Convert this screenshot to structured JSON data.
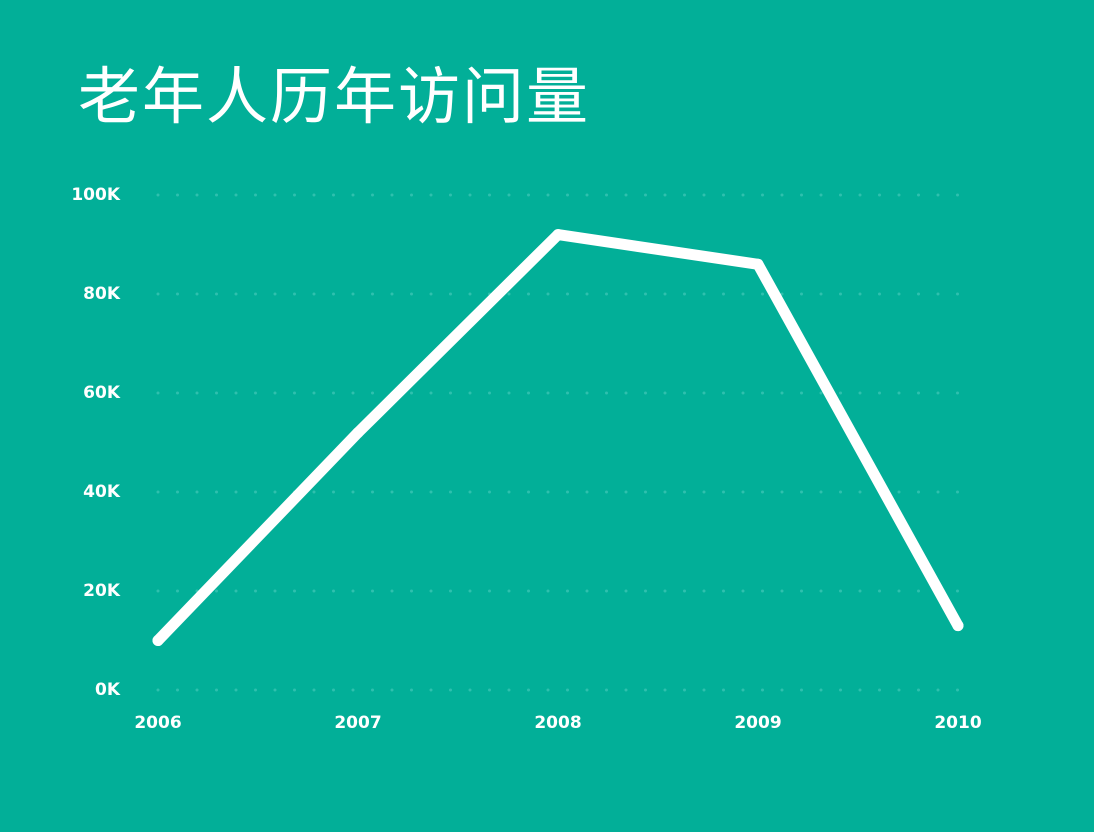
{
  "page": {
    "title": "老年人历年访问量",
    "background": "#02AF98"
  },
  "chart_data": {
    "type": "line",
    "title": "老年人历年访问量",
    "xlabel": "",
    "ylabel": "",
    "categories": [
      "2006",
      "2007",
      "2008",
      "2009",
      "2010"
    ],
    "values": [
      10000,
      52000,
      92000,
      86000,
      13000
    ],
    "ylim": [
      0,
      100000
    ],
    "yticks": [
      0,
      20000,
      40000,
      60000,
      80000,
      100000
    ],
    "ytick_labels": [
      "0K",
      "20K",
      "40K",
      "60K",
      "80K",
      "100K"
    ],
    "grid": "dotted horizontal",
    "legend": "none",
    "line_color": "#FFFFFF",
    "grid_color": "#2FC0AE"
  }
}
